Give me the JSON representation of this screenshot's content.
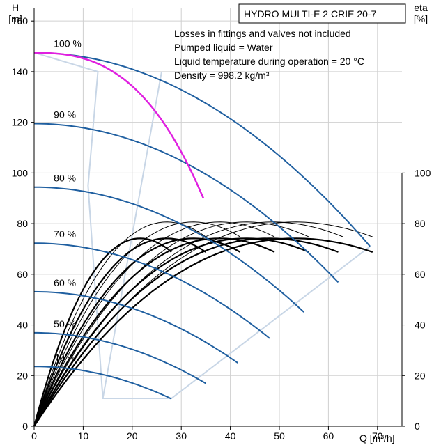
{
  "chart_data": {
    "type": "line",
    "title": "HYDRO MULTI-E 2 CRIE 20-7",
    "notes": [
      "Losses in fittings and valves not included",
      "Pumped liquid = Water",
      "Liquid temperature during operation = 20 °C",
      "Density = 998.2 kg/m³"
    ],
    "xlabel": "Q [m³/h]",
    "ylabel_left": [
      "H",
      "[m]"
    ],
    "ylabel_right": [
      "eta",
      "[%]"
    ],
    "xlim": [
      0,
      75
    ],
    "ylim": [
      0,
      165
    ],
    "x_ticks": [
      0,
      10,
      20,
      30,
      40,
      50,
      60,
      70
    ],
    "y_ticks_left": [
      0,
      20,
      40,
      60,
      80,
      100,
      120,
      140,
      160
    ],
    "y_ticks_right": [
      0,
      20,
      40,
      60,
      80,
      100
    ],
    "grid": true,
    "colors": {
      "pump_curve": "#1f5fa0",
      "highlight": "#e020e0",
      "limit": "#c8d6e6",
      "efficiency": "#000000",
      "grid": "#d0d0d0"
    },
    "speed_curves": [
      {
        "label": "100 %",
        "frac": 1.0,
        "qmax": 68.5
      },
      {
        "label": "90 %",
        "frac": 0.9,
        "qmax": 62.0
      },
      {
        "label": "80 %",
        "frac": 0.8,
        "qmax": 55.0
      },
      {
        "label": "70 %",
        "frac": 0.7,
        "qmax": 48.0
      },
      {
        "label": "60 %",
        "frac": 0.6,
        "qmax": 41.5
      },
      {
        "label": "50 %",
        "frac": 0.5,
        "qmax": 35.0
      },
      {
        "label": "40 %",
        "frac": 0.4,
        "qmax": 28.0
      }
    ],
    "pump_h0": 147.5,
    "pump_qref": 68.5,
    "pump_href": 71,
    "highlight_qmax": 34.5,
    "limit_left": [
      [
        0,
        147.5
      ],
      [
        13,
        140
      ],
      [
        11,
        95
      ],
      [
        14,
        11
      ]
    ],
    "limit_right": [
      [
        26,
        140
      ],
      [
        14,
        11
      ],
      [
        28,
        11
      ],
      [
        68.5,
        71
      ]
    ],
    "eta_curves": [
      {
        "peak": 75,
        "qmax": 35,
        "w": 1
      },
      {
        "peak": 75,
        "qmax": 42,
        "w": 1
      },
      {
        "peak": 75,
        "qmax": 49,
        "w": 1
      },
      {
        "peak": 75,
        "qmax": 56,
        "w": 1
      },
      {
        "peak": 75,
        "qmax": 63,
        "w": 1
      },
      {
        "peak": 75,
        "qmax": 69,
        "w": 1
      },
      {
        "peak": 69,
        "qmax": 28,
        "w": 2.2
      },
      {
        "peak": 69,
        "qmax": 35,
        "w": 2.2
      },
      {
        "peak": 69,
        "qmax": 42,
        "w": 2.2
      },
      {
        "peak": 69,
        "qmax": 49,
        "w": 2.2
      },
      {
        "peak": 69,
        "qmax": 56,
        "w": 2.2
      },
      {
        "peak": 69,
        "qmax": 62,
        "w": 2.2
      },
      {
        "peak": 69,
        "qmax": 69,
        "w": 2.2
      }
    ]
  }
}
